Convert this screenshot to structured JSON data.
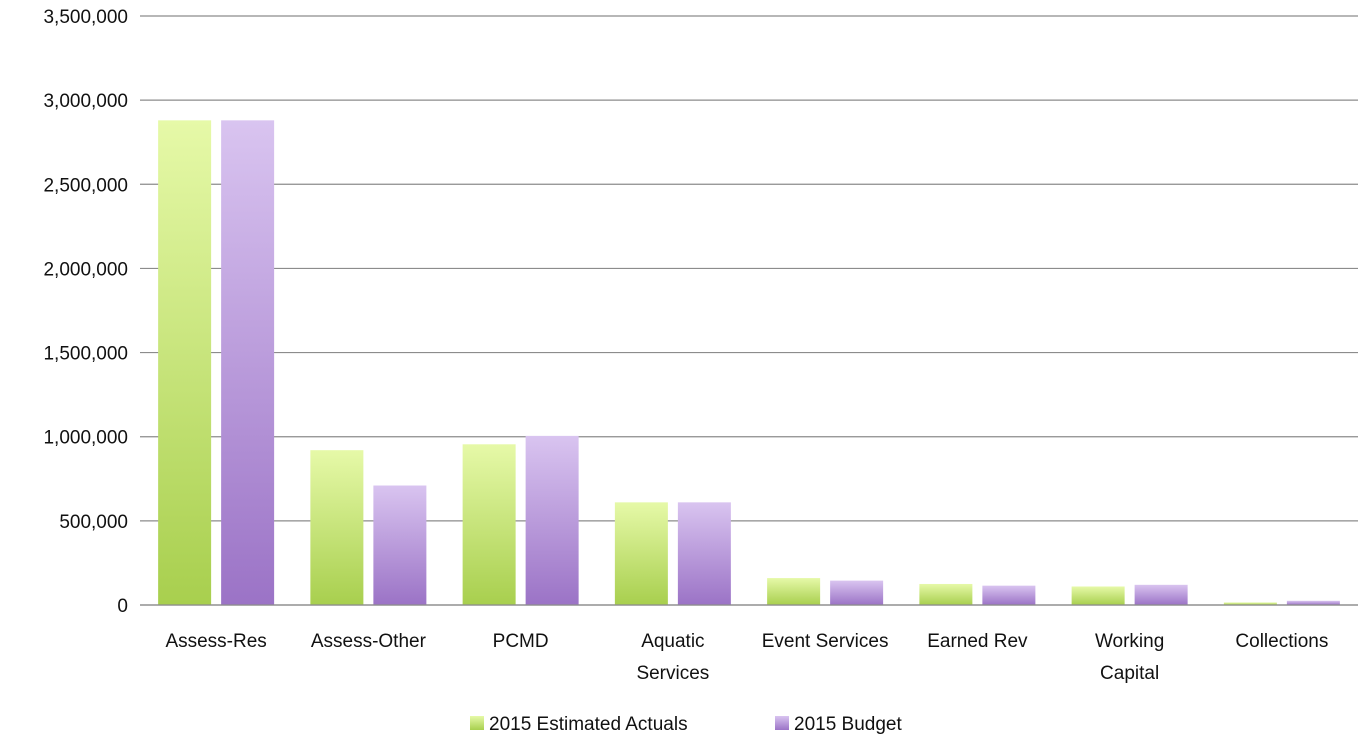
{
  "chart_data": {
    "type": "bar",
    "categories": [
      [
        "Assess-Res"
      ],
      [
        "Assess-Other"
      ],
      [
        "PCMD"
      ],
      [
        "Aquatic",
        "Services"
      ],
      [
        "Event Services"
      ],
      [
        "Earned Rev"
      ],
      [
        "Working",
        "Capital"
      ],
      [
        "Collections"
      ]
    ],
    "series": [
      {
        "name": "2015 Estimated Actuals",
        "color_top": "#e6f9a8",
        "color_bottom": "#a8cf4e",
        "values": [
          2880000,
          920000,
          955000,
          610000,
          160000,
          125000,
          110000,
          15000
        ]
      },
      {
        "name": "2015 Budget",
        "color_top": "#d9c4f0",
        "color_bottom": "#9b73c6",
        "values": [
          2880000,
          710000,
          1005000,
          610000,
          145000,
          115000,
          120000,
          25000
        ]
      }
    ],
    "ylim": [
      0,
      3500000
    ],
    "yticks": [
      0,
      500000,
      1000000,
      1500000,
      2000000,
      2500000,
      3000000,
      3500000
    ],
    "ytick_labels": [
      "0",
      "500,000",
      "1,000,000",
      "1,500,000",
      "2,000,000",
      "2,500,000",
      "3,000,000",
      "3,500,000"
    ],
    "grid": true,
    "legend_position": "bottom"
  }
}
